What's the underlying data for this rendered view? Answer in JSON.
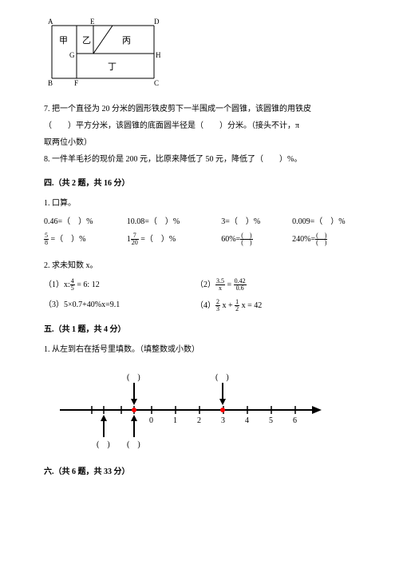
{
  "diagram": {
    "labels": {
      "A": "A",
      "E": "E",
      "D": "D",
      "B": "B",
      "F": "F",
      "C": "C",
      "G": "G",
      "H": "H",
      "jia": "甲",
      "yi": "乙",
      "bing": "丙",
      "ding": "丁"
    },
    "stroke": "#000000"
  },
  "q7": {
    "text_a": "7. 把一个直径为 20 分米的圆形铁皮剪下一半围成一个圆锥，该圆锥的用铁皮",
    "text_b": "（　　）平方分米，该圆锥的底面圆半径是（　　）分米。（接头不计，π",
    "text_c": "取两位小数）"
  },
  "q8": {
    "text": "8. 一件羊毛衫的现价是 200 元，比原来降低了 50 元，降低了（　　）%。"
  },
  "sec4": {
    "header": "四.（共 2 题，共 16 分）"
  },
  "s4q1": {
    "title": "1. 口算。",
    "r1c1": "0.46=（　）%",
    "r1c2": "10.08=（　）%",
    "r1c3": "3=（　）%",
    "r1c4": "0.009=（　）%",
    "r2c3_a": "60%=",
    "r2c4_a": "240%="
  },
  "s4q2": {
    "title": "2. 求未知数 x。",
    "e1_a": "（1）x:",
    "e1_b": " = 6: 12",
    "e2_a": "（2）",
    "e3": "（3）5×0.7+40%x=9.1",
    "e4_a": "（4）"
  },
  "sec5": {
    "header": "五.（共 1 题，共 4 分）"
  },
  "s5q1": {
    "title": "1. 从左到右在括号里填数。（填整数或小数）"
  },
  "numline": {
    "ticks": [
      "0",
      "1",
      "2",
      "3",
      "4",
      "5",
      "6"
    ],
    "top_b1": "(　)",
    "top_b2": "(　)",
    "bot_b1": "(　)",
    "bot_b2": "(　)",
    "line_color": "#000000",
    "dot_fill": "#ff0000"
  },
  "sec6": {
    "header": "六.（共 6 题，共 33 分）"
  }
}
